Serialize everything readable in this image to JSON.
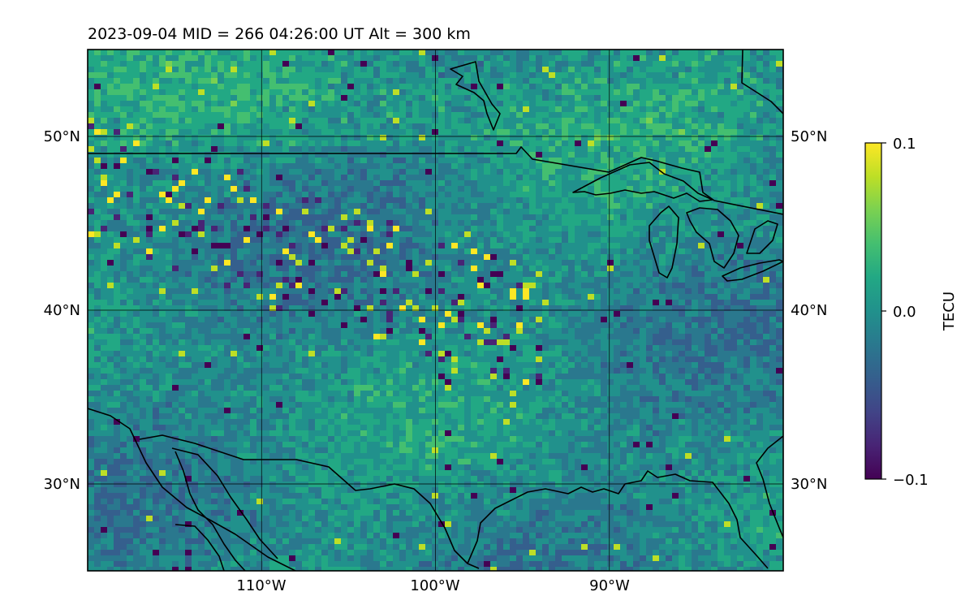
{
  "title": "2023-09-04  MID = 266    04:26:00  UT  Alt = 300 km",
  "map": {
    "lon_range": [
      -120,
      -80
    ],
    "lat_range": [
      25,
      55
    ],
    "grid": true,
    "lat_ticks": [
      {
        "value": 50,
        "label": "50°N"
      },
      {
        "value": 40,
        "label": "40°N"
      },
      {
        "value": 30,
        "label": "30°N"
      }
    ],
    "lon_ticks": [
      {
        "value": -110,
        "label": "110°W"
      },
      {
        "value": -100,
        "label": "100°W"
      },
      {
        "value": -90,
        "label": "90°W"
      }
    ],
    "coastlines": true,
    "borders": true
  },
  "colorbar": {
    "label": "TECU",
    "colormap": "viridis",
    "vmin": -0.1,
    "vmax": 0.1,
    "ticks": [
      {
        "value": 0.1,
        "label": "0.1"
      },
      {
        "value": 0.0,
        "label": "0.0"
      },
      {
        "value": -0.1,
        "label": "−0.1"
      }
    ]
  }
}
